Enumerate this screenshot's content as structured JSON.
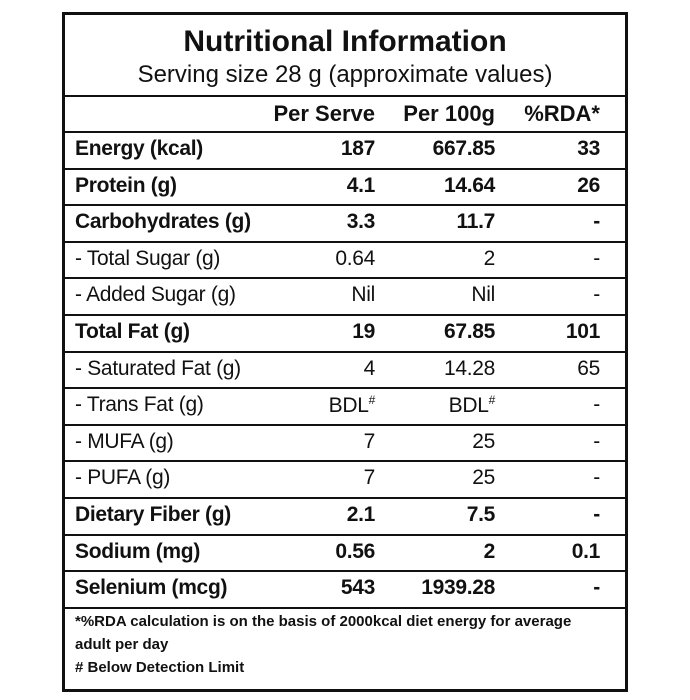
{
  "title": "Nutritional Information",
  "subtitle": "Serving size 28 g (approximate values)",
  "header": {
    "per_serve": "Per Serve",
    "per_100g": "Per 100g",
    "rda": "%RDA*"
  },
  "rows": [
    {
      "label": "Energy (kcal)",
      "per_serve": "187",
      "per_100g": "667.85",
      "rda": "33",
      "bold": true
    },
    {
      "label": "Protein (g)",
      "per_serve": "4.1",
      "per_100g": "14.64",
      "rda": "26",
      "bold": true
    },
    {
      "label": "Carbohydrates (g)",
      "per_serve": "3.3",
      "per_100g": "11.7",
      "rda": "-",
      "bold": true
    },
    {
      "label": "- Total Sugar (g)",
      "per_serve": "0.64",
      "per_100g": "2",
      "rda": "-",
      "bold": false
    },
    {
      "label": "- Added Sugar (g)",
      "per_serve": "Nil",
      "per_100g": "Nil",
      "rda": "-",
      "bold": false
    },
    {
      "label": "Total Fat (g)",
      "per_serve": "19",
      "per_100g": "67.85",
      "rda": "101",
      "bold": true
    },
    {
      "label": "- Saturated Fat (g)",
      "per_serve": "4",
      "per_100g": "14.28",
      "rda": "65",
      "bold": false
    },
    {
      "label": "- Trans Fat (g)",
      "per_serve": {
        "text": "BDL",
        "sup": "#"
      },
      "per_100g": {
        "text": "BDL",
        "sup": "#"
      },
      "rda": "-",
      "bold": false
    },
    {
      "label": "- MUFA (g)",
      "per_serve": "7",
      "per_100g": "25",
      "rda": "-",
      "bold": false
    },
    {
      "label": "- PUFA (g)",
      "per_serve": "7",
      "per_100g": "25",
      "rda": "-",
      "bold": false
    },
    {
      "label": "Dietary Fiber (g)",
      "per_serve": "2.1",
      "per_100g": "7.5",
      "rda": "-",
      "bold": true
    },
    {
      "label": "Sodium (mg)",
      "per_serve": "0.56",
      "per_100g": "2",
      "rda": "0.1",
      "bold": true
    },
    {
      "label": "Selenium (mcg)",
      "per_serve": "543",
      "per_100g": "1939.28",
      "rda": "-",
      "bold": true
    }
  ],
  "footnotes": [
    "*%RDA calculation is on the basis of 2000kcal diet energy for average",
    "adult per day",
    "# Below Detection Limit"
  ]
}
